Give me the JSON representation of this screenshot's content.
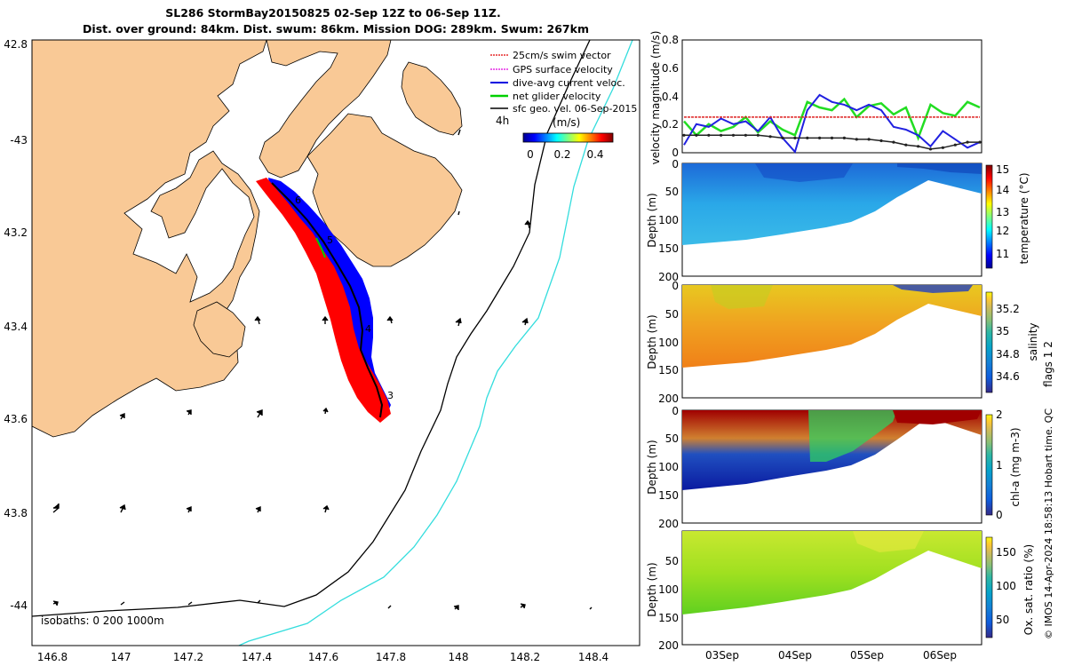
{
  "title": {
    "line1": "SL286 StormBay20150825 02-Sep 12Z to 06-Sep 11Z.",
    "line2": "Dist. over ground: 84km. Dist. swum: 86km. Mission DOG: 289km. Swum: 267km"
  },
  "map": {
    "lon_ticks": [
      "146.8",
      "147",
      "147.2",
      "147.4",
      "147.6",
      "147.8",
      "148",
      "148.2",
      "148.4"
    ],
    "lat_ticks": [
      "42.8",
      "-43",
      "43.2",
      "43.4",
      "43.6",
      "43.8",
      "-44"
    ],
    "legend": [
      {
        "label": "25cm/s swim vector",
        "color": "#e00000"
      },
      {
        "label": "GPS surface velocity",
        "color": "#e000e0"
      },
      {
        "label": "dive-avg current veloc.",
        "color": "#0000e0"
      },
      {
        "label": "net glider velocity",
        "color": "#00d000"
      },
      {
        "label": "sfc geo. vel. 06-Sep-2015",
        "color": "#000000"
      }
    ],
    "legend_tag": "4h",
    "colorbar_title": "(m/s)",
    "colorbar_ticks": [
      "0",
      "0.2",
      "0.4"
    ],
    "day_labels": [
      "6",
      "5",
      "4",
      "3"
    ],
    "isobaths_label": "isobaths: 0   200  1000m",
    "colors": {
      "land": "#f9c996",
      "shelf_isobath": "#000000",
      "deep_isobath": "#33dddd",
      "glider_red": "#ff0000",
      "glider_blue": "#0000ff"
    }
  },
  "chart_data": [
    {
      "type": "line",
      "title": "",
      "ylabel": "velocity magnitude (m/s)",
      "ylim": [
        0,
        0.8
      ],
      "yticks": [
        "0",
        "0.2",
        "0.4",
        "0.6",
        "0.8"
      ],
      "x": [
        0,
        4,
        8,
        12,
        16,
        20,
        24,
        28,
        32,
        36,
        40,
        44,
        48,
        52,
        56,
        60,
        64,
        68,
        72,
        76,
        80,
        84,
        88,
        92,
        96
      ],
      "series": [
        {
          "name": "net glider velocity",
          "color": "#22dd22",
          "values": [
            0.22,
            0.12,
            0.2,
            0.15,
            0.18,
            0.25,
            0.14,
            0.22,
            0.16,
            0.12,
            0.36,
            0.32,
            0.3,
            0.38,
            0.25,
            0.33,
            0.35,
            0.27,
            0.32,
            0.1,
            0.34,
            0.28,
            0.26,
            0.36,
            0.32
          ]
        },
        {
          "name": "dive-avg current veloc.",
          "color": "#2020e0",
          "values": [
            0.05,
            0.2,
            0.18,
            0.24,
            0.2,
            0.22,
            0.15,
            0.25,
            0.1,
            0.0,
            0.3,
            0.41,
            0.36,
            0.34,
            0.3,
            0.34,
            0.3,
            0.18,
            0.16,
            0.12,
            0.04,
            0.15,
            0.09,
            0.03,
            0.07
          ]
        },
        {
          "name": "swim vector",
          "color": "#dd2020",
          "values": [
            0.25,
            0.25,
            0.25,
            0.25,
            0.25,
            0.25,
            0.25,
            0.25,
            0.25,
            0.25,
            0.25,
            0.25,
            0.25,
            0.25,
            0.25,
            0.25,
            0.25,
            0.25,
            0.25,
            0.25,
            0.25,
            0.25,
            0.25,
            0.25,
            0.25
          ]
        },
        {
          "name": "sfc geo. vel.",
          "color": "#222222",
          "values": [
            0.12,
            0.12,
            0.12,
            0.12,
            0.12,
            0.12,
            0.12,
            0.11,
            0.1,
            0.1,
            0.1,
            0.1,
            0.1,
            0.1,
            0.09,
            0.09,
            0.08,
            0.07,
            0.05,
            0.04,
            0.02,
            0.03,
            0.05,
            0.07,
            0.07
          ]
        }
      ]
    },
    {
      "type": "heatmap",
      "variable": "temperature",
      "ylabel": "Depth (m)",
      "ylim": [
        200,
        0
      ],
      "yticks": [
        "0",
        "50",
        "100",
        "150",
        "200"
      ],
      "colorbar_label": "temperature (°C)",
      "colorbar_ticks": [
        "11",
        "12",
        "13",
        "14",
        "15"
      ],
      "clim": [
        10.5,
        15
      ]
    },
    {
      "type": "heatmap",
      "variable": "salinity",
      "ylabel": "Depth (m)",
      "ylim": [
        200,
        0
      ],
      "yticks": [
        "0",
        "50",
        "100",
        "150",
        "200"
      ],
      "colorbar_label": "salinity",
      "colorbar_ticks": [
        "34.6",
        "34.8",
        "35",
        "35.2"
      ],
      "clim": [
        34.45,
        35.35
      ]
    },
    {
      "type": "heatmap",
      "variable": "chl-a",
      "ylabel": "Depth (m)",
      "ylim": [
        200,
        0
      ],
      "yticks": [
        "0",
        "50",
        "100",
        "150",
        "200"
      ],
      "colorbar_label": "chl-a (mg m-3)",
      "colorbar_ticks": [
        "0",
        "1",
        "2"
      ],
      "clim": [
        0,
        2
      ]
    },
    {
      "type": "heatmap",
      "variable": "oxygen saturation",
      "ylabel": "Depth (m)",
      "ylim": [
        200,
        0
      ],
      "yticks": [
        "50",
        "100",
        "150",
        "200"
      ],
      "colorbar_label": "Ox. sat. ratio (%)",
      "colorbar_ticks": [
        "50",
        "100",
        "150"
      ],
      "clim": [
        25,
        170
      ],
      "xticks": [
        "03Sep",
        "04Sep",
        "05Sep",
        "06Sep"
      ]
    }
  ],
  "right_label": "flags 1  2",
  "credit": "© IMOS 14-Apr-2024 18:58:13 Hobart time. QC"
}
